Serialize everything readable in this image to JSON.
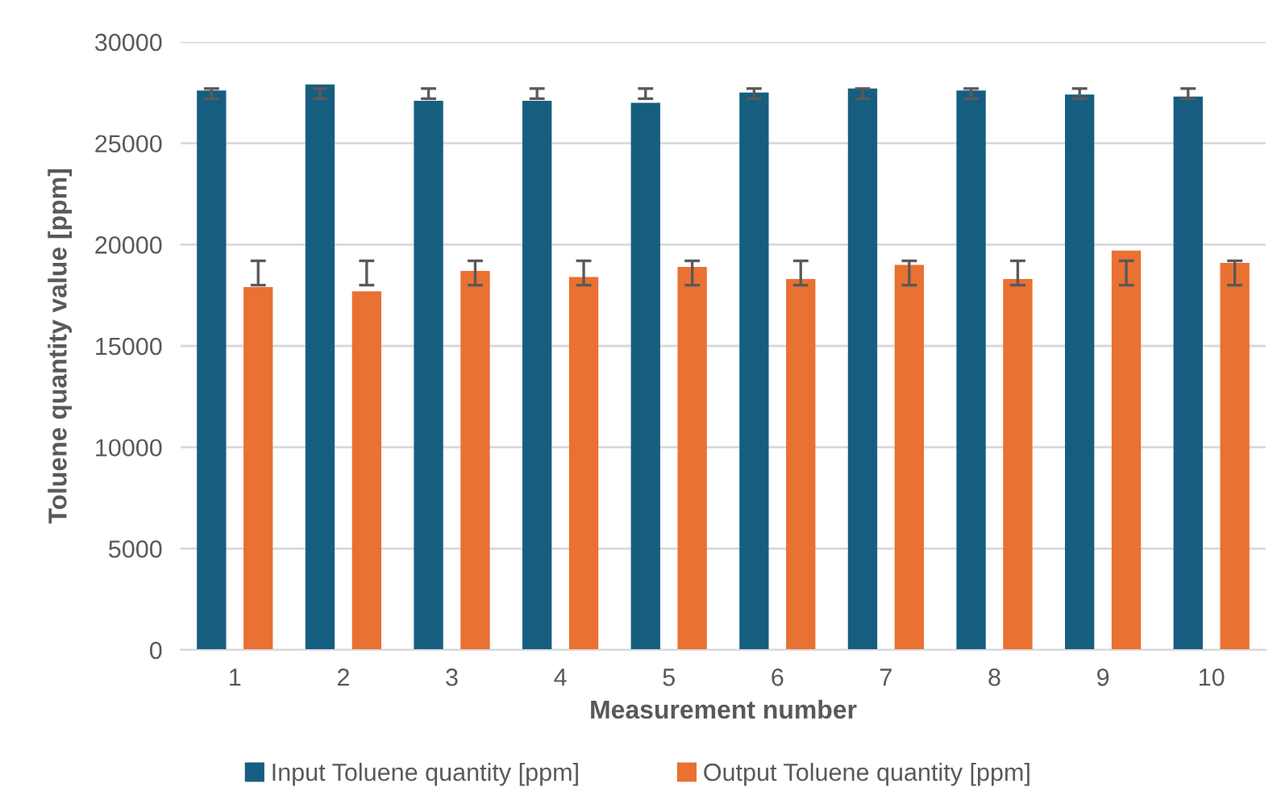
{
  "chart_data": {
    "type": "bar",
    "xlabel": "Measurement number",
    "ylabel": "Toluene quantity value [ppm]",
    "categories": [
      "1",
      "2",
      "3",
      "4",
      "5",
      "6",
      "7",
      "8",
      "9",
      "10"
    ],
    "series": [
      {
        "name": "Input Toluene quantity [ppm]",
        "color": "#165e80",
        "values": [
          27600,
          27900,
          27100,
          27100,
          27000,
          27500,
          27700,
          27600,
          27400,
          27300
        ],
        "errors": [
          [
            27200,
            27700
          ],
          [
            27200,
            27700
          ],
          [
            27200,
            27700
          ],
          [
            27200,
            27700
          ],
          [
            27200,
            27700
          ],
          [
            27200,
            27700
          ],
          [
            27200,
            27700
          ],
          [
            27200,
            27700
          ],
          [
            27200,
            27700
          ],
          [
            27200,
            27700
          ]
        ]
      },
      {
        "name": "Output Toluene quantity [ppm]",
        "color": "#e97132",
        "values": [
          17900,
          17700,
          18700,
          18400,
          18900,
          18300,
          19000,
          18300,
          19700,
          19100
        ],
        "errors": [
          [
            18000,
            19200
          ],
          [
            18000,
            19200
          ],
          [
            18000,
            19200
          ],
          [
            18000,
            19200
          ],
          [
            18000,
            19200
          ],
          [
            18000,
            19200
          ],
          [
            18000,
            19200
          ],
          [
            18000,
            19200
          ],
          [
            18000,
            19200
          ],
          [
            18000,
            19200
          ]
        ]
      }
    ],
    "ylim": [
      0,
      30000
    ],
    "yticks": [
      0,
      5000,
      10000,
      15000,
      20000,
      25000,
      30000
    ],
    "grid": "y",
    "legend": "bottom"
  }
}
